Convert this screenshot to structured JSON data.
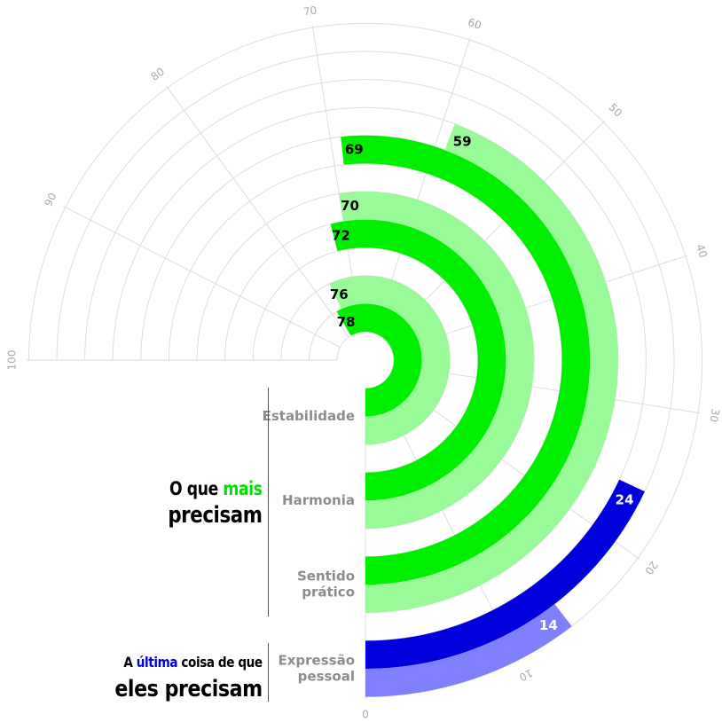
{
  "chart_data": {
    "type": "radial_bar",
    "axis": {
      "min": 0,
      "max": 100,
      "ticks": [
        0,
        10,
        20,
        30,
        40,
        50,
        60,
        70,
        80,
        90,
        100
      ]
    },
    "categories": [
      "Estabilidade",
      "Harmonia",
      "Sentido prático",
      "Expressão pessoal"
    ],
    "category_labels": [
      [
        "Estabilidade"
      ],
      [
        "Harmonia"
      ],
      [
        "Sentido",
        "prático"
      ],
      [
        "Expressão",
        "pessoal"
      ]
    ],
    "series": [
      {
        "values": [
          78,
          72,
          69,
          24
        ]
      },
      {
        "values": [
          76,
          70,
          59,
          14
        ]
      }
    ],
    "colors": {
      "primary": [
        "#00ee00",
        "#00ee00",
        "#00ee00",
        "#0000dd"
      ],
      "secondary": [
        "#98fb98",
        "#98fb98",
        "#98fb98",
        "#8080ff"
      ],
      "label_primary": [
        "#000000",
        "#000000",
        "#000000",
        "#ffffff"
      ],
      "label_secondary": [
        "#000000",
        "#000000",
        "#000000",
        "#ffffff"
      ],
      "grid": "#dddddd",
      "tick_label": "#aaaaaa",
      "category_label": "#8c8c8c"
    }
  },
  "headings": {
    "top": {
      "before": "O que ",
      "highlight": "mais",
      "after": "precisam"
    },
    "bottom": {
      "before": "A ",
      "highlight": "última",
      "after": " coisa de que",
      "line2": "eles precisam"
    }
  }
}
